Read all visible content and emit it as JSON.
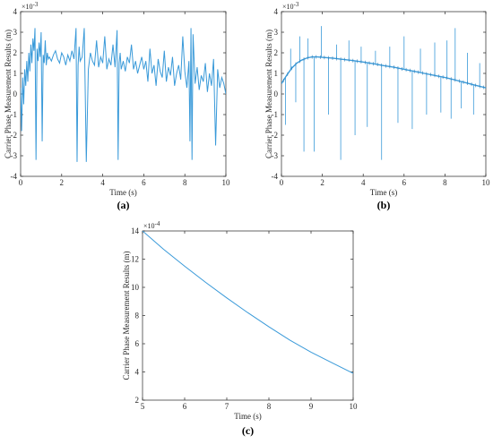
{
  "chart_data": [
    {
      "type": "line",
      "panel_label": "(a)",
      "xlabel": "Time (s)",
      "ylabel": "Carrier Phase Measurement Results (m)",
      "exponent_label": "×10-3",
      "xlim": [
        0,
        10
      ],
      "ylim": [
        -4,
        4
      ],
      "xticks": [
        "0",
        "2",
        "4",
        "6",
        "8",
        "10"
      ],
      "yticks": [
        "-4",
        "-3",
        "-2",
        "-1",
        "0",
        "1",
        "2",
        "3",
        "4"
      ],
      "color": "#3a9ad9",
      "series": [
        {
          "x": [
            0,
            0.05,
            0.1,
            0.15,
            0.2,
            0.25,
            0.3,
            0.35,
            0.4,
            0.45,
            0.5,
            0.55,
            0.6,
            0.65,
            0.7,
            0.75,
            0.8,
            0.85,
            0.9,
            0.95,
            1.0,
            1.05,
            1.1,
            1.15,
            1.2,
            1.25,
            1.3,
            1.35,
            1.4,
            1.5,
            1.6,
            1.7,
            1.8,
            1.9,
            2.0,
            2.1,
            2.2,
            2.3,
            2.4,
            2.5,
            2.6,
            2.7,
            2.75,
            2.8,
            2.85,
            2.9,
            3.0,
            3.1,
            3.2,
            3.3,
            3.4,
            3.5,
            3.6,
            3.7,
            3.8,
            3.9,
            4.0,
            4.1,
            4.2,
            4.3,
            4.4,
            4.5,
            4.6,
            4.7,
            4.75,
            4.8,
            4.85,
            4.9,
            5.0,
            5.1,
            5.2,
            5.3,
            5.4,
            5.5,
            5.6,
            5.7,
            5.8,
            5.9,
            6.0,
            6.1,
            6.2,
            6.3,
            6.4,
            6.5,
            6.6,
            6.7,
            6.8,
            6.9,
            7.0,
            7.1,
            7.2,
            7.3,
            7.4,
            7.5,
            7.6,
            7.7,
            7.8,
            7.9,
            8.0,
            8.1,
            8.2,
            8.25,
            8.3,
            8.35,
            8.4,
            8.5,
            8.6,
            8.7,
            8.8,
            8.9,
            9.0,
            9.1,
            9.2,
            9.3,
            9.4,
            9.5,
            9.6,
            9.7,
            9.8,
            9.9,
            10.0
          ],
          "y": [
            0.3,
            -1.8,
            0.8,
            -0.5,
            1.2,
            0.4,
            1.6,
            0.6,
            2.0,
            1.1,
            2.4,
            1.5,
            2.7,
            2.1,
            3.2,
            -3.2,
            2.2,
            1.6,
            2.5,
            1.8,
            3.0,
            -2.3,
            1.9,
            1.5,
            2.6,
            1.4,
            2.0,
            1.7,
            1.8,
            1.6,
            1.9,
            2.1,
            1.7,
            1.5,
            2.0,
            1.8,
            1.4,
            1.9,
            1.6,
            2.1,
            1.7,
            3.2,
            -3.3,
            1.4,
            2.3,
            1.6,
            1.8,
            3.2,
            -3.3,
            1.2,
            2.0,
            1.6,
            1.4,
            2.6,
            1.3,
            1.8,
            1.5,
            2.8,
            1.2,
            1.7,
            1.4,
            2.4,
            1.3,
            3.1,
            -3.2,
            1.5,
            2.0,
            1.2,
            1.6,
            1.1,
            1.8,
            1.5,
            2.4,
            1.2,
            1.6,
            1.0,
            1.4,
            1.8,
            1.2,
            1.6,
            0.6,
            2.2,
            1.0,
            1.4,
            0.4,
            1.7,
            1.1,
            0.8,
            2.1,
            0.6,
            1.3,
            0.9,
            1.8,
            0.4,
            1.0,
            1.4,
            0.7,
            2.8,
            1.1,
            0.3,
            1.6,
            -2.3,
            3.2,
            -3.2,
            2.9,
            0.5,
            1.3,
            0.2,
            0.9,
            0.6,
            1.5,
            0.1,
            1.0,
            0.4,
            1.7,
            -2.5,
            1.2,
            0.3,
            0.8,
            0.5,
            0.0
          ]
        }
      ]
    },
    {
      "type": "line",
      "panel_label": "(b)",
      "xlabel": "Time (s)",
      "ylabel": "Carrier Phase Measurement Results (m)",
      "exponent_label": "×10-3",
      "xlim": [
        0,
        10
      ],
      "ylim": [
        -4,
        4
      ],
      "xticks": [
        "0",
        "2",
        "4",
        "6",
        "8",
        "10"
      ],
      "yticks": [
        "-4",
        "-3",
        "-2",
        "-1",
        "0",
        "1",
        "2",
        "3",
        "4"
      ],
      "color": "#3a9ad9",
      "trend": {
        "x": [
          0,
          0.25,
          0.5,
          0.75,
          1.0,
          1.25,
          1.5,
          1.75,
          2.0,
          2.5,
          3.0,
          3.5,
          4.0,
          4.5,
          5.0,
          5.5,
          6.0,
          6.5,
          7.0,
          7.5,
          8.0,
          8.5,
          9.0,
          9.5,
          10.0
        ],
        "y": [
          0.5,
          0.9,
          1.25,
          1.5,
          1.65,
          1.75,
          1.8,
          1.8,
          1.78,
          1.74,
          1.68,
          1.62,
          1.55,
          1.47,
          1.38,
          1.3,
          1.2,
          1.1,
          1.0,
          0.9,
          0.8,
          0.68,
          0.55,
          0.42,
          0.3
        ]
      },
      "spikes": [
        {
          "x": 0.2,
          "y": -1.5
        },
        {
          "x": 0.45,
          "y": 2.2
        },
        {
          "x": 0.7,
          "y": -0.4
        },
        {
          "x": 0.9,
          "y": 2.8
        },
        {
          "x": 1.1,
          "y": -2.8
        },
        {
          "x": 1.3,
          "y": 2.7
        },
        {
          "x": 1.6,
          "y": -2.8
        },
        {
          "x": 1.95,
          "y": 3.3
        },
        {
          "x": 2.3,
          "y": -1.0
        },
        {
          "x": 2.7,
          "y": 2.4
        },
        {
          "x": 2.9,
          "y": -3.2
        },
        {
          "x": 3.3,
          "y": 2.6
        },
        {
          "x": 3.6,
          "y": -2.0
        },
        {
          "x": 3.9,
          "y": 2.3
        },
        {
          "x": 4.2,
          "y": -1.6
        },
        {
          "x": 4.6,
          "y": 2.1
        },
        {
          "x": 4.9,
          "y": -3.2
        },
        {
          "x": 5.3,
          "y": 2.3
        },
        {
          "x": 5.7,
          "y": -1.4
        },
        {
          "x": 6.0,
          "y": 2.8
        },
        {
          "x": 6.4,
          "y": -1.7
        },
        {
          "x": 6.8,
          "y": 2.2
        },
        {
          "x": 7.1,
          "y": -1.0
        },
        {
          "x": 7.5,
          "y": 2.5
        },
        {
          "x": 7.8,
          "y": -0.9
        },
        {
          "x": 8.1,
          "y": 2.6
        },
        {
          "x": 8.3,
          "y": -1.2
        },
        {
          "x": 8.5,
          "y": 3.2
        },
        {
          "x": 8.8,
          "y": -0.7
        },
        {
          "x": 9.1,
          "y": 2.0
        },
        {
          "x": 9.4,
          "y": -1.0
        },
        {
          "x": 9.7,
          "y": 1.5
        }
      ]
    },
    {
      "type": "line",
      "panel_label": "(c)",
      "xlabel": "Time (s)",
      "ylabel": "Carrier Phase Measurement Results (m)",
      "exponent_label": "×10-4",
      "xlim": [
        5,
        10
      ],
      "ylim": [
        2,
        14
      ],
      "xticks": [
        "5",
        "6",
        "7",
        "8",
        "9",
        "10"
      ],
      "yticks": [
        "2",
        "4",
        "6",
        "8",
        "10",
        "12",
        "14"
      ],
      "color": "#3a9ad9",
      "series": [
        {
          "x": [
            5,
            5.5,
            6,
            6.5,
            7,
            7.5,
            8,
            8.5,
            9,
            9.5,
            10
          ],
          "y": [
            14.0,
            12.7,
            11.5,
            10.35,
            9.25,
            8.2,
            7.2,
            6.25,
            5.4,
            4.65,
            3.9
          ]
        }
      ]
    }
  ]
}
